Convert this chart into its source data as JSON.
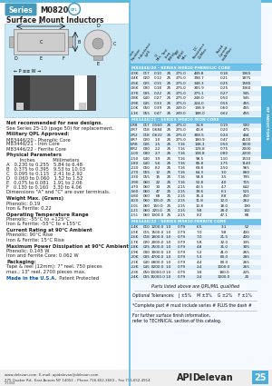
{
  "bg_color": "#ffffff",
  "header_blue": "#5bb8e0",
  "table_header_blue": "#6dc0e0",
  "section_header_blue": "#70c0e8",
  "row_alt_blue": "#ddeef8",
  "right_tab_blue": "#4aaed8",
  "diag_bg": "#cce8f4",
  "footer_gray": "#f0f0f0",
  "phenolic_rows": [
    [
      "-03K",
      "017",
      "0.10",
      "25",
      "275.0",
      "449.8",
      "0.18",
      "1965"
    ],
    [
      "-04K",
      "020",
      "0.12",
      "25",
      "275.0",
      "398.7",
      "0.21",
      "1875"
    ],
    [
      "-05K",
      "025",
      "0.15",
      "25",
      "275.0",
      "348.3",
      "0.25",
      "1580"
    ],
    [
      "-06K",
      "030",
      "0.18",
      "25",
      "275.0",
      "305.9",
      "0.25",
      "1360"
    ],
    [
      "-07K",
      "035",
      "0.22",
      "25",
      "275.0",
      "275.1",
      "0.27",
      "945"
    ],
    [
      "-08K",
      "040",
      "0.27",
      "25",
      "275.0",
      "248.0",
      "0.50",
      "945"
    ],
    [
      "-09K",
      "045",
      "0.33",
      "25",
      "275.0",
      "224.0",
      "0.55",
      "455"
    ],
    [
      "-10K",
      "050",
      "0.39",
      "25",
      "249.0",
      "198.9",
      "0.60",
      "455"
    ],
    [
      "-11K",
      "055",
      "0.47",
      "25",
      "249.0",
      "188.0",
      "0.62",
      "455"
    ]
  ],
  "iron_rows": [
    [
      "-1R8",
      "017",
      "0.560",
      "25",
      "275.0",
      "34.8",
      "0.19",
      "500"
    ],
    [
      "-2R7",
      "018",
      "0.684",
      "25",
      "275.0",
      "43.8",
      "0.20",
      "475"
    ],
    [
      "-2R2",
      "018",
      "0.622",
      "25",
      "275.0",
      "308.5",
      "0.24",
      "444"
    ],
    [
      "-4R7",
      "020",
      "1.0",
      "25",
      "275.0",
      "180.9",
      "0.47",
      "4100"
    ],
    [
      "-6R8",
      "026",
      "1.5",
      "25",
      "7.16",
      "148.3",
      "0.50",
      "3000"
    ],
    [
      "-8R2",
      "030",
      "2.2",
      "25",
      "7.16",
      "128.8",
      "0.75",
      "2000"
    ],
    [
      "-100",
      "030",
      "2.7",
      "25",
      "7.16",
      "108.8",
      "0.80",
      "2200"
    ],
    [
      "-150",
      "040",
      "3.9",
      "25",
      "7.16",
      "98.5",
      "1.10",
      "1510"
    ],
    [
      "-180",
      "040",
      "5.6",
      "25",
      "7.16",
      "85.8",
      "1.75",
      "1140"
    ],
    [
      "-220",
      "050",
      "8.2",
      "25",
      "7.16",
      "69.8",
      "2.50",
      "965"
    ],
    [
      "-270",
      "055",
      "12",
      "25",
      "7.16",
      "64.3",
      "3.0",
      "860"
    ],
    [
      "-330",
      "055",
      "15",
      "25",
      "7.16",
      "58.8",
      "3.5",
      "795"
    ],
    [
      "-390",
      "060",
      "22",
      "25",
      "7.16",
      "52.8",
      "4.0",
      "715"
    ],
    [
      "-470",
      "060",
      "33",
      "25",
      "2.15",
      "43.5",
      "4.7",
      "642"
    ],
    [
      "-560",
      "060",
      "47",
      "25",
      "2.15",
      "39.6",
      "6.1",
      "521"
    ],
    [
      "-680",
      "060",
      "68",
      "25",
      "2.15",
      "35.4",
      "8.8",
      "450"
    ],
    [
      "-820",
      "060",
      "100.0",
      "25",
      "2.15",
      "11.8",
      "12.0",
      "262"
    ],
    [
      "-101",
      "060",
      "150.0",
      "25",
      "2.15",
      "10.8",
      "18.0",
      "190"
    ],
    [
      "-121",
      "060",
      "220.0",
      "25",
      "2.15",
      "9.8",
      "28.0",
      "142"
    ],
    [
      "-151",
      "060",
      "1000.0",
      "25",
      "2.15",
      "8.2",
      "47.1",
      "88"
    ]
  ],
  "ferrite_rows": [
    [
      "-14K",
      "010",
      "1200.0",
      "1.0",
      "0.79",
      "6.5",
      "3.1",
      "52"
    ],
    [
      "-15K",
      "015",
      "1500.0",
      "1.0",
      "0.79",
      "7.0",
      "9.8",
      "400"
    ],
    [
      "-16K",
      "018",
      "1800.0",
      "1.0",
      "0.79",
      "7.0",
      "21.5",
      "400"
    ],
    [
      "-17K",
      "020",
      "2000.0",
      "1.0",
      "0.79",
      "5.8",
      "32.0",
      "335"
    ],
    [
      "-18K",
      "025",
      "2500.0",
      "1.0",
      "0.79",
      "4.8",
      "31.0",
      "305"
    ],
    [
      "-19K",
      "030",
      "3000.0",
      "1.0",
      "0.79",
      "5.2",
      "41.0",
      "265"
    ],
    [
      "-20K",
      "035",
      "4700.0",
      "1.0",
      "0.79",
      "5.3",
      "80.0",
      "285"
    ],
    [
      "-21K",
      "040",
      "6800.0",
      "1.0",
      "0.79",
      "4.4",
      "80.0",
      "265"
    ],
    [
      "-22K",
      "045",
      "8200.0",
      "1.0",
      "0.79",
      "2.4",
      "1000.0",
      "265"
    ],
    [
      "-23K",
      "050",
      "10000.0",
      "1.0",
      "0.79",
      "3.8",
      "180.0",
      "225"
    ],
    [
      "-24K",
      "055",
      "15000.0",
      "1.0",
      "0.79",
      "2.4",
      "1000.0",
      "20"
    ]
  ],
  "diag_col_labels": [
    "Inductance\\n(μH)",
    "Q\\nMin.",
    "Test Freq.\\n(MHz)",
    "SRF (MHz)\\nMin.",
    "DC\\nResistance\\n(Ω) Max.",
    "Rated\\nCurrent\\n(mA) Max."
  ]
}
